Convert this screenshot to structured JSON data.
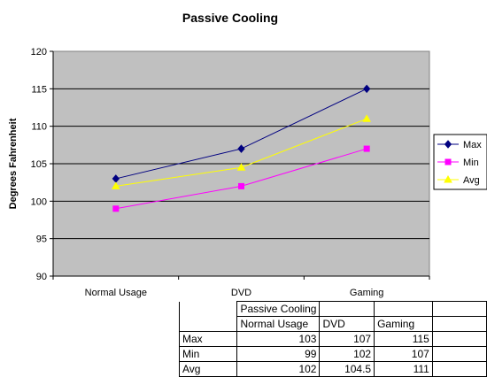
{
  "chart_data": {
    "type": "line",
    "title": "Passive Cooling",
    "ylabel": "Degrees Fahrenheit",
    "xlabel": "",
    "categories": [
      "Normal Usage",
      "DVD",
      "Gaming"
    ],
    "ylim": [
      90,
      120
    ],
    "yticks": [
      90,
      95,
      100,
      105,
      110,
      115,
      120
    ],
    "grid": true,
    "legend_position": "right",
    "plot_background": "#c0c0c0",
    "series": [
      {
        "name": "Max",
        "values": [
          103,
          107,
          115
        ],
        "color": "#000080",
        "marker": "diamond"
      },
      {
        "name": "Min",
        "values": [
          99,
          102,
          107
        ],
        "color": "#ff00ff",
        "marker": "square"
      },
      {
        "name": "Avg",
        "values": [
          102,
          104.5,
          111
        ],
        "color": "#ffff00",
        "marker": "triangle"
      }
    ]
  },
  "table": {
    "title": "Passive Cooling",
    "headers": [
      "Normal Usage",
      "DVD",
      "Gaming"
    ],
    "rows": [
      {
        "label": "Max",
        "values": [
          "103",
          "107",
          "115"
        ]
      },
      {
        "label": "Min",
        "values": [
          "99",
          "102",
          "107"
        ]
      },
      {
        "label": "Avg",
        "values": [
          "102",
          "104.5",
          "111"
        ]
      }
    ]
  }
}
